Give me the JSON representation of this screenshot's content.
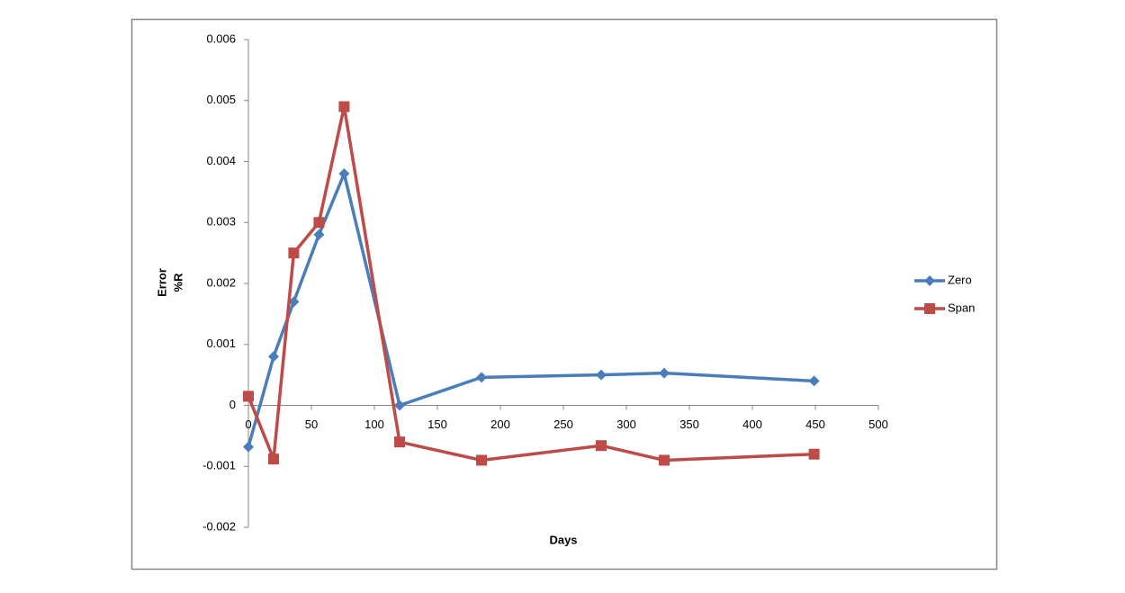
{
  "chart_data": {
    "type": "line",
    "x_label": "Days",
    "y_label": [
      "Error",
      "%R"
    ],
    "xlim": [
      0,
      500
    ],
    "xticks": [
      0,
      50,
      100,
      150,
      200,
      250,
      300,
      350,
      400,
      450,
      500
    ],
    "ylim": [
      -0.002,
      0.006
    ],
    "yticks": [
      -0.002,
      -0.001,
      0,
      0.001,
      0.002,
      0.003,
      0.004,
      0.005,
      0.006
    ],
    "legend": "right",
    "series": [
      {
        "name": "Zero",
        "color": "#4a7ebb",
        "marker": "diamond",
        "x": [
          0,
          20,
          36,
          56,
          76,
          120,
          185,
          280,
          330,
          449
        ],
        "values": [
          -0.00068,
          0.0008,
          0.0017,
          0.0028,
          0.0038,
          0,
          0.00046,
          0.0005,
          0.00053,
          0.0004
        ]
      },
      {
        "name": "Span",
        "color": "#be4b48",
        "marker": "square",
        "x": [
          0,
          20,
          36,
          56,
          76,
          120,
          185,
          280,
          330,
          449
        ],
        "values": [
          0.00015,
          -0.00088,
          0.0025,
          0.003,
          0.0049,
          -0.0006,
          -0.0009,
          -0.00066,
          -0.0009,
          -0.0008
        ]
      }
    ]
  }
}
